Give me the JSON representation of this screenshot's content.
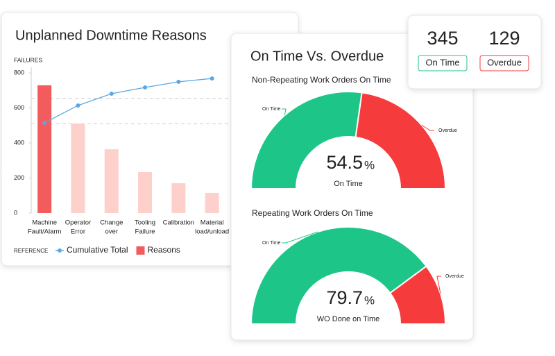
{
  "chart_data": [
    {
      "type": "pareto",
      "title": "Unplanned Downtime Reasons",
      "y_label": "FAILURES",
      "categories": [
        [
          "Machine",
          "Fault/Alarm"
        ],
        [
          "Operator",
          "Error"
        ],
        [
          "Change",
          "over"
        ],
        [
          "Tooling",
          "Failure"
        ],
        [
          "Calibration"
        ],
        [
          "Material",
          "load/unload"
        ]
      ],
      "ylim": [
        0,
        800
      ],
      "yticks": [
        0,
        200,
        400,
        600,
        800
      ],
      "reference_lines": [
        655,
        510
      ],
      "legend_title": "REFERENCE",
      "series": [
        {
          "name": "Cumulative Total",
          "type": "line",
          "color": "#5ba7e6",
          "values": [
            515,
            614,
            681,
            717,
            749,
            768
          ]
        },
        {
          "name": "Reasons",
          "type": "bar",
          "color": "#f25c5c",
          "colors": [
            "#f25c5c",
            "#fdd0cb",
            "#fdd0cb",
            "#fdd0cb",
            "#fdd0cb",
            "#fdd0cb"
          ],
          "values": [
            729,
            511,
            364,
            234,
            170,
            115
          ]
        }
      ]
    },
    {
      "type": "gauge",
      "title": "Non-Repeating Work Orders On Time",
      "center_label": "On Time",
      "unit": "%",
      "categories": [
        "On Time",
        "Overdue"
      ],
      "values": [
        54.5,
        45.5
      ],
      "colors": [
        "#1ec588",
        "#f53b3b"
      ]
    },
    {
      "type": "gauge",
      "title": "Repeating Work Orders On Time",
      "center_label": "WO Done on Time",
      "unit": "%",
      "categories": [
        "On Time",
        "Overdue"
      ],
      "values": [
        79.7,
        20.3
      ],
      "colors": [
        "#1ec588",
        "#f53b3b"
      ]
    }
  ],
  "gauge_panel_title": "On Time Vs. Overdue",
  "stats": [
    {
      "value": 345,
      "label": "On Time",
      "color": "#1ec588"
    },
    {
      "value": 129,
      "label": "Overdue",
      "color": "#f53b3b"
    }
  ]
}
